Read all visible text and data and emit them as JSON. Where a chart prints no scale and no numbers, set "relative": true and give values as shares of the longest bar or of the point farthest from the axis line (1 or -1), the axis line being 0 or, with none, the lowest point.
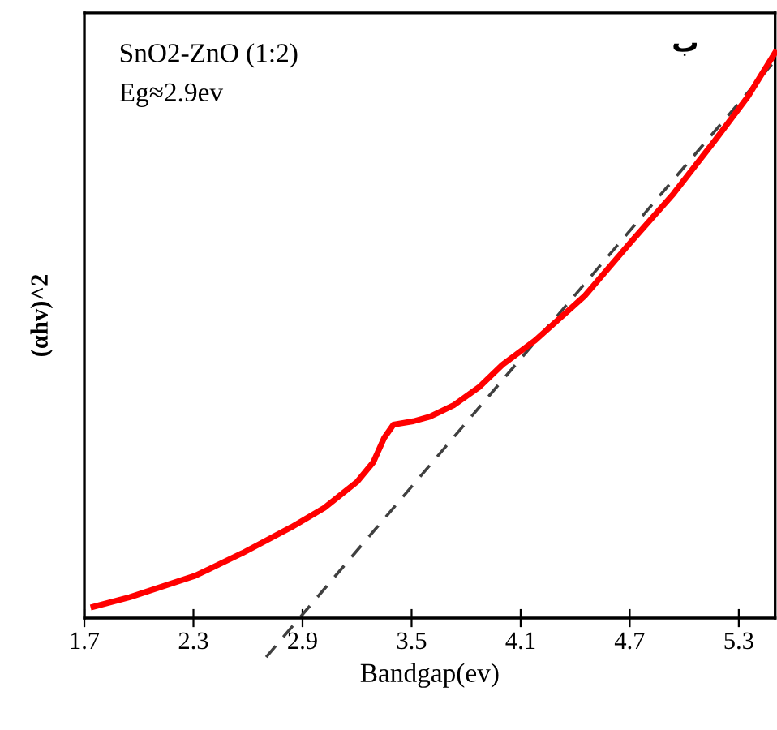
{
  "chart_data": {
    "type": "line",
    "relative": true,
    "xlabel": "Bandgap(ev)",
    "ylabel": "(αhv)^2",
    "xlim": [
      1.7,
      5.5
    ],
    "xticks": [
      1.7,
      2.3,
      2.9,
      3.5,
      4.1,
      4.7,
      5.3
    ],
    "annotations": [
      "SnO2-ZnO (1:2)",
      "Eg≈2.9ev",
      "ب"
    ],
    "grid": false,
    "legend": false,
    "marker": "none",
    "series": [
      {
        "color": "#ff0000",
        "line_style": "solid",
        "x": [
          1.75,
          1.95,
          2.31,
          2.57,
          2.84,
          3.02,
          3.2,
          3.29,
          3.35,
          3.4,
          3.51,
          3.6,
          3.73,
          3.87,
          4.0,
          4.18,
          4.45,
          4.72,
          4.94,
          5.17,
          5.35,
          5.5
        ],
        "values": [
          0.02,
          0.037,
          0.075,
          0.115,
          0.161,
          0.195,
          0.241,
          0.276,
          0.319,
          0.342,
          0.348,
          0.356,
          0.376,
          0.408,
          0.448,
          0.491,
          0.569,
          0.67,
          0.75,
          0.845,
          0.922,
          1.0
        ]
      },
      {
        "color": "#404040",
        "line_style": "dashed",
        "x": [
          2.7,
          5.5
        ],
        "values": [
          -0.069,
          0.986
        ]
      }
    ]
  }
}
